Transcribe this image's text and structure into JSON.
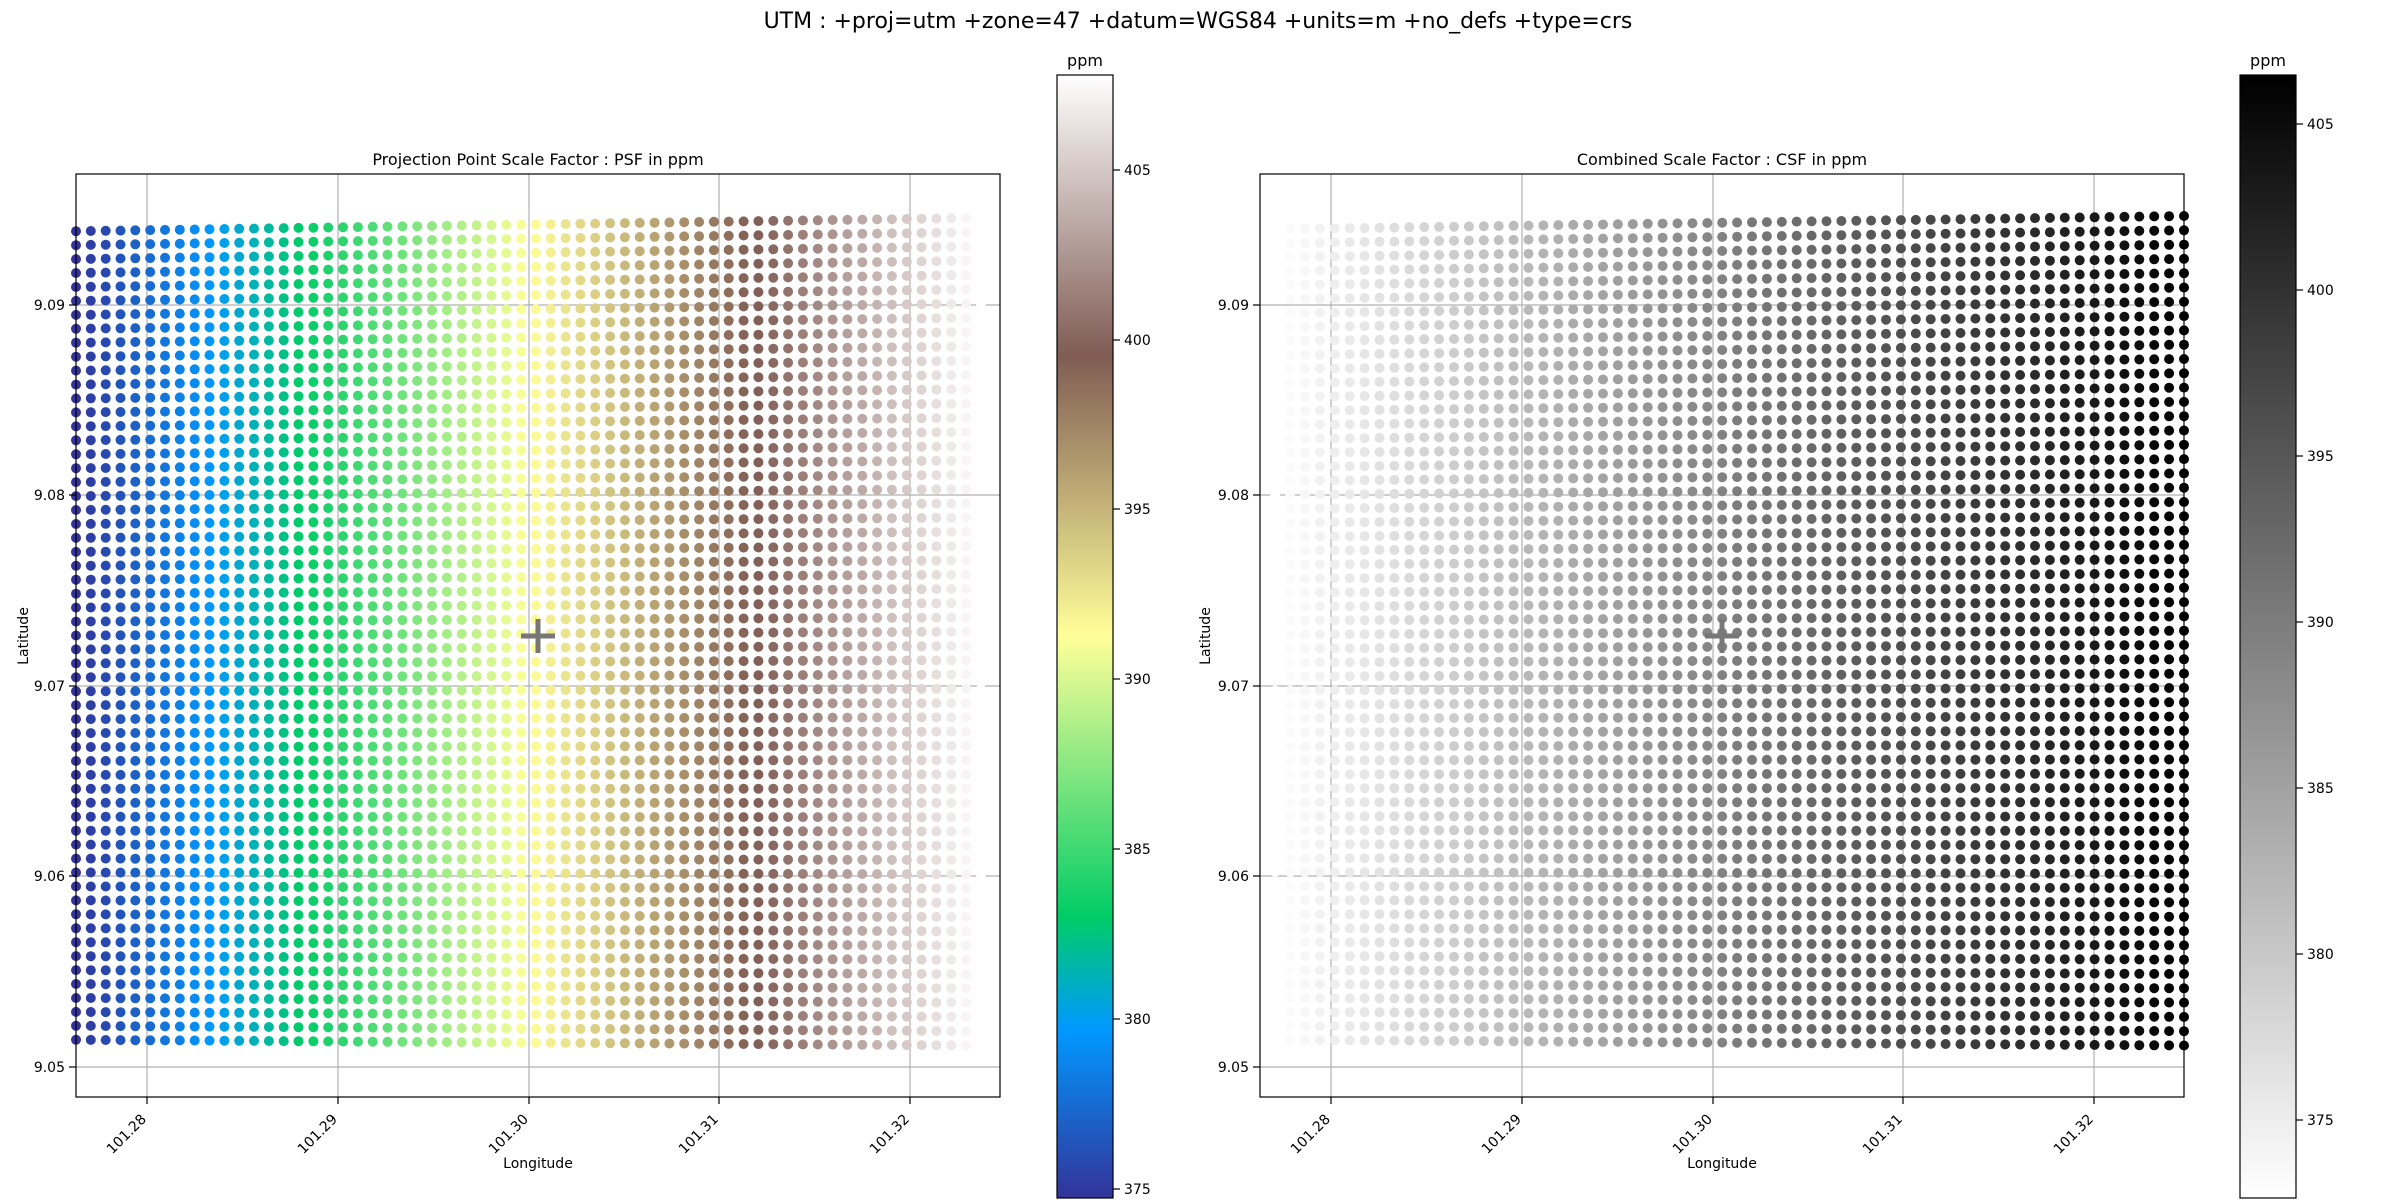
{
  "suptitle": "UTM : +proj=utm +zone=47 +datum=WGS84 +units=m +no_defs +type=crs",
  "chart_data": [
    {
      "type": "scatter",
      "title": "Projection Point Scale Factor : PSF in ppm",
      "xlabel": "Longitude",
      "ylabel": "Latitude",
      "xlim": [
        101.2762,
        101.3247
      ],
      "ylim": [
        9.0483,
        9.0967
      ],
      "xticks": [
        "101.28",
        "101.29",
        "101.30",
        "101.31",
        "101.32"
      ],
      "yticks": [
        "9.05",
        "9.06",
        "9.07",
        "9.08",
        "9.09"
      ],
      "grid": true,
      "colormap": "terrain",
      "marker": "+",
      "marker_point": [
        101.3003,
        9.0725
      ],
      "grid_points": {
        "columns": 62,
        "rows": 59,
        "lon_min": 101.2762,
        "lon_max": 101.3237,
        "lat_top_left": 9.0937,
        "lat_top_right": 9.0944,
        "lat_bottom_left": 9.0513,
        "lat_bottom_right": 9.051
      },
      "value_range": [
        374.7,
        407.7
      ],
      "colorbar": {
        "label": "ppm",
        "ticks": [
          "375",
          "380",
          "385",
          "390",
          "395",
          "400",
          "405"
        ],
        "range": [
          374.7,
          407.7
        ]
      }
    },
    {
      "type": "scatter",
      "title": "Combined Scale Factor : CSF in ppm",
      "xlabel": "Longitude",
      "ylabel": "Latitude",
      "xlim": [
        101.2762,
        101.3247
      ],
      "ylim": [
        9.0483,
        9.0967
      ],
      "xticks": [
        "101.28",
        "101.29",
        "101.30",
        "101.31",
        "101.32"
      ],
      "yticks": [
        "9.05",
        "9.06",
        "9.07",
        "9.08",
        "9.09"
      ],
      "grid": true,
      "colormap": "gray_r",
      "marker": "+",
      "marker_point": [
        101.3003,
        9.0725
      ],
      "grid_points": {
        "columns": 62,
        "rows": 59,
        "lon_min": 101.277,
        "lon_max": 101.3247,
        "lat_top_left": 9.0938,
        "lat_top_right": 9.0945,
        "lat_bottom_left": 9.0513,
        "lat_bottom_right": 9.051
      },
      "value_range": [
        372.8,
        406.5
      ],
      "colorbar": {
        "label": "ppm",
        "ticks": [
          "375",
          "380",
          "385",
          "390",
          "395",
          "400",
          "405"
        ],
        "range": [
          372.8,
          406.5
        ]
      }
    }
  ]
}
